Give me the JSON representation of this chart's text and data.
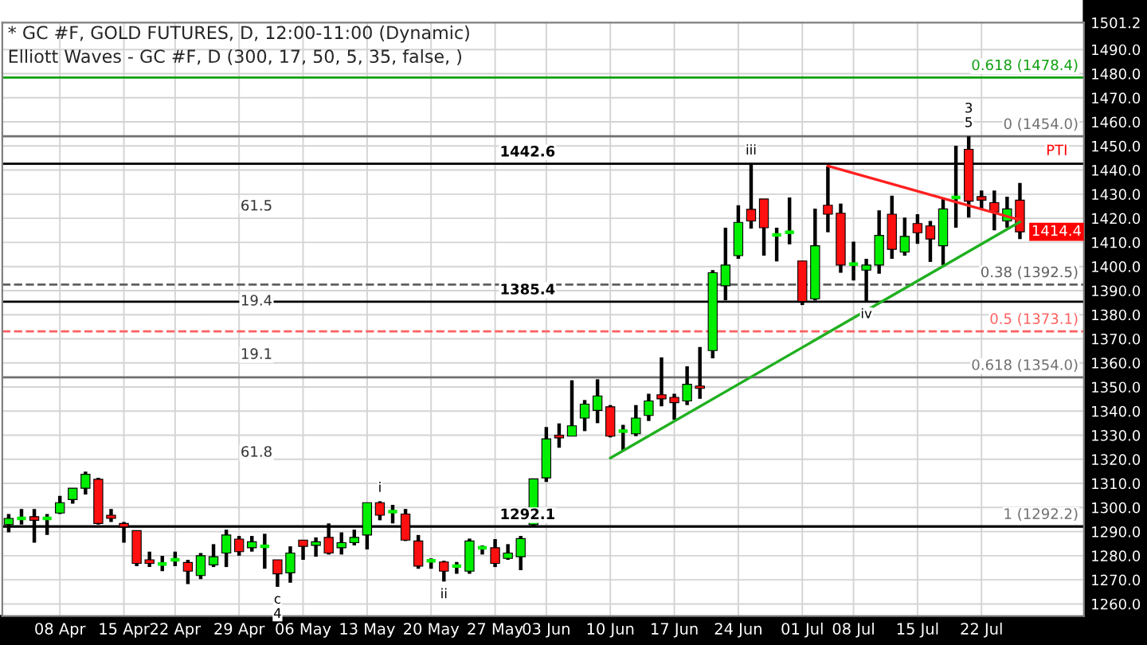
{
  "chart_data": {
    "type": "candlestick",
    "title": "* GC #F, GOLD FUTURES, D, 12:00-11:00 (Dynamic)",
    "subtitle": "Elliott Waves - GC #F, D (300, 17, 50, 5, 35, false, )",
    "categories": [
      null,
      null,
      null,
      null,
      "08 Apr",
      null,
      null,
      null,
      null,
      "15 Apr",
      null,
      null,
      null,
      "22 Apr",
      null,
      null,
      null,
      null,
      "29 Apr",
      null,
      null,
      null,
      null,
      "06 May",
      null,
      null,
      null,
      null,
      "13 May",
      null,
      null,
      null,
      null,
      "20 May",
      null,
      null,
      null,
      null,
      "27 May",
      null,
      null,
      null,
      "03 Jun",
      null,
      null,
      null,
      null,
      "10 Jun",
      null,
      null,
      null,
      null,
      "17 Jun",
      null,
      null,
      null,
      null,
      "24 Jun",
      null,
      null,
      null,
      null,
      "01 Jul",
      null,
      null,
      null,
      "08 Jul",
      null,
      null,
      null,
      null,
      "15 Jul",
      null,
      null,
      null,
      null,
      "22 Jul",
      null,
      null,
      null
    ],
    "ohlc": [
      [
        1292.9,
        1297.3,
        1289.7,
        1295.5
      ],
      [
        1295.5,
        1299.4,
        1292.9,
        1295.5
      ],
      [
        1296.2,
        1299.4,
        1285.4,
        1294.7
      ],
      [
        1295.5,
        1297.3,
        1288.6,
        1295.5
      ],
      [
        1297.7,
        1304.8,
        1297.3,
        1302.0
      ],
      [
        1303.3,
        1308.0,
        1301.6,
        1308.0
      ],
      [
        1308.0,
        1314.9,
        1305.4,
        1313.8
      ],
      [
        1311.7,
        1312.3,
        1292.9,
        1293.4
      ],
      [
        1296.8,
        1299.4,
        1294.0,
        1295.5
      ],
      [
        1293.4,
        1294.0,
        1285.4,
        1291.9
      ],
      [
        1290.4,
        1290.4,
        1275.7,
        1276.8
      ],
      [
        1278.3,
        1281.7,
        1275.3,
        1276.8
      ],
      [
        1276.6,
        1280.0,
        1273.6,
        1276.6
      ],
      [
        1278.3,
        1281.7,
        1275.7,
        1278.3
      ],
      [
        1277.2,
        1278.3,
        1268.2,
        1273.6
      ],
      [
        1271.8,
        1281.1,
        1270.3,
        1280.0
      ],
      [
        1276.2,
        1284.8,
        1275.3,
        1279.6
      ],
      [
        1281.1,
        1290.8,
        1275.3,
        1288.6
      ],
      [
        1286.9,
        1288.2,
        1280.0,
        1281.7
      ],
      [
        1283.3,
        1288.2,
        1281.7,
        1285.8
      ],
      [
        1283.9,
        1289.1,
        1274.6,
        1283.9
      ],
      [
        1278.3,
        1278.3,
        1267.1,
        1272.5
      ],
      [
        1272.9,
        1283.9,
        1268.8,
        1281.1
      ],
      [
        1286.5,
        1286.5,
        1278.3,
        1283.9
      ],
      [
        1284.3,
        1287.6,
        1279.6,
        1285.8
      ],
      [
        1287.6,
        1293.4,
        1280.5,
        1281.1
      ],
      [
        1283.3,
        1289.7,
        1280.5,
        1285.4
      ],
      [
        1285.4,
        1290.8,
        1284.3,
        1287.6
      ],
      [
        1288.6,
        1302.0,
        1282.6,
        1302.0
      ],
      [
        1302.0,
        1302.6,
        1294.7,
        1296.8
      ],
      [
        1298.3,
        1301.1,
        1293.4,
        1298.3
      ],
      [
        1297.3,
        1299.4,
        1286.1,
        1286.5
      ],
      [
        1286.1,
        1288.6,
        1274.6,
        1275.7
      ],
      [
        1277.9,
        1278.9,
        1274.6,
        1277.9
      ],
      [
        1277.4,
        1277.9,
        1269.3,
        1273.6
      ],
      [
        1275.7,
        1277.4,
        1272.5,
        1275.7
      ],
      [
        1273.6,
        1287.1,
        1272.5,
        1286.1
      ],
      [
        1283.3,
        1284.3,
        1280.5,
        1283.3
      ],
      [
        1283.3,
        1286.9,
        1275.3,
        1276.8
      ],
      [
        1278.9,
        1284.8,
        1278.3,
        1281.1
      ],
      [
        1279.6,
        1288.2,
        1274.0,
        1287.1
      ],
      [
        1292.9,
        1311.9,
        1292.5,
        1311.9
      ],
      [
        1312.3,
        1333.4,
        1310.6,
        1328.5
      ],
      [
        1330.0,
        1334.9,
        1324.8,
        1328.9
      ],
      [
        1329.6,
        1352.8,
        1329.6,
        1333.9
      ],
      [
        1337.1,
        1344.6,
        1331.7,
        1342.9
      ],
      [
        1340.3,
        1353.2,
        1335.0,
        1346.3
      ],
      [
        1341.8,
        1342.5,
        1329.1,
        1329.6
      ],
      [
        1331.7,
        1334.3,
        1323.5,
        1331.7
      ],
      [
        1330.6,
        1342.5,
        1329.6,
        1337.1
      ],
      [
        1338.2,
        1347.2,
        1335.9,
        1344.2
      ],
      [
        1346.8,
        1362.3,
        1342.0,
        1345.1
      ],
      [
        1345.7,
        1347.2,
        1336.4,
        1343.5
      ],
      [
        1344.2,
        1358.6,
        1342.5,
        1351.1
      ],
      [
        1350.4,
        1366.6,
        1345.1,
        1349.4
      ],
      [
        1365.1,
        1398.5,
        1361.9,
        1397.4
      ],
      [
        1392.0,
        1416.1,
        1386.0,
        1400.6
      ],
      [
        1404.5,
        1425.4,
        1403.2,
        1418.3
      ],
      [
        1423.7,
        1442.6,
        1415.7,
        1418.9
      ],
      [
        1428.0,
        1428.0,
        1404.5,
        1416.1
      ],
      [
        1413.1,
        1416.1,
        1402.1,
        1413.1
      ],
      [
        1414.2,
        1428.6,
        1409.2,
        1414.2
      ],
      [
        1402.3,
        1402.3,
        1384.0,
        1385.5
      ],
      [
        1386.6,
        1424.0,
        1385.9,
        1408.6
      ],
      [
        1425.4,
        1441.7,
        1414.2,
        1421.7
      ],
      [
        1422.1,
        1426.1,
        1397.4,
        1400.6
      ],
      [
        1401.0,
        1410.3,
        1394.2,
        1401.0
      ],
      [
        1398.5,
        1403.2,
        1385.5,
        1400.6
      ],
      [
        1400.6,
        1423.3,
        1397.0,
        1412.9
      ],
      [
        1421.7,
        1429.4,
        1403.2,
        1407.1
      ],
      [
        1406.0,
        1420.3,
        1404.5,
        1412.5
      ],
      [
        1417.8,
        1421.7,
        1409.4,
        1414.0
      ],
      [
        1416.8,
        1418.9,
        1401.9,
        1411.4
      ],
      [
        1408.6,
        1428.6,
        1400.6,
        1423.9
      ],
      [
        1428.6,
        1450.1,
        1416.1,
        1428.6
      ],
      [
        1448.6,
        1454.0,
        1420.3,
        1427.1
      ],
      [
        1429.0,
        1431.5,
        1424.0,
        1427.5
      ],
      [
        1426.5,
        1431.5,
        1415.0,
        1422.6
      ],
      [
        1418.9,
        1429.0,
        1416.1,
        1423.9
      ],
      [
        1427.5,
        1434.7,
        1411.4,
        1414.4
      ]
    ],
    "series": [
      {
        "type": "line",
        "color": "#ff2020",
        "values": [
          null,
          null,
          null,
          null,
          null,
          null,
          null,
          null,
          null,
          null,
          null,
          null,
          null,
          null,
          null,
          null,
          null,
          null,
          null,
          null,
          null,
          null,
          null,
          null,
          null,
          null,
          null,
          null,
          null,
          null,
          null,
          null,
          null,
          null,
          null,
          null,
          null,
          null,
          null,
          null,
          null,
          null,
          null,
          null,
          null,
          null,
          null,
          null,
          null,
          null,
          null,
          null,
          null,
          null,
          null,
          null,
          null,
          null,
          null,
          null,
          null,
          null,
          null,
          null,
          1441.7,
          null,
          null,
          null,
          null,
          null,
          null,
          null,
          null,
          null,
          null,
          null,
          null,
          null,
          null,
          1419.3
        ]
      },
      {
        "type": "line",
        "color": "#20b020",
        "values": [
          null,
          null,
          null,
          null,
          null,
          null,
          null,
          null,
          null,
          null,
          null,
          null,
          null,
          null,
          null,
          null,
          null,
          null,
          null,
          null,
          null,
          null,
          null,
          null,
          null,
          null,
          null,
          null,
          null,
          null,
          null,
          null,
          null,
          null,
          null,
          null,
          null,
          null,
          null,
          null,
          null,
          null,
          null,
          null,
          null,
          null,
          null,
          1320.5,
          null,
          null,
          null,
          null,
          null,
          null,
          null,
          null,
          null,
          null,
          null,
          null,
          null,
          null,
          null,
          null,
          null,
          null,
          null,
          null,
          null,
          null,
          null,
          null,
          null,
          null,
          null,
          null,
          null,
          null,
          null,
          1418.5
        ]
      }
    ],
    "ylim": [
      1255,
      1501.2
    ],
    "yticks": [
      {
        "value": 1260,
        "label": "1260.0"
      },
      {
        "value": 1270,
        "label": "1270.0"
      },
      {
        "value": 1280,
        "label": "1280.0"
      },
      {
        "value": 1290,
        "label": "1290.0"
      },
      {
        "value": 1300,
        "label": "1300.0"
      },
      {
        "value": 1310,
        "label": "1310.0"
      },
      {
        "value": 1320,
        "label": "1320.0"
      },
      {
        "value": 1330,
        "label": "1330.0"
      },
      {
        "value": 1340,
        "label": "1340.0"
      },
      {
        "value": 1350,
        "label": "1350.0"
      },
      {
        "value": 1360,
        "label": "1360.0"
      },
      {
        "value": 1370,
        "label": "1370.0"
      },
      {
        "value": 1380,
        "label": "1380.0"
      },
      {
        "value": 1390,
        "label": "1390.0"
      },
      {
        "value": 1400,
        "label": "1400.0"
      },
      {
        "value": 1410,
        "label": "1410.0"
      },
      {
        "value": 1420,
        "label": "1420.0"
      },
      {
        "value": 1430,
        "label": "1430.0"
      },
      {
        "value": 1440,
        "label": "1440.0"
      },
      {
        "value": 1450,
        "label": "1450.0"
      },
      {
        "value": 1460,
        "label": "1460.0"
      },
      {
        "value": 1470,
        "label": "1470.0"
      },
      {
        "value": 1480,
        "label": "1480.0"
      },
      {
        "value": 1490,
        "label": "1490.0"
      },
      {
        "value": 1501.2,
        "label": "1501.2"
      }
    ],
    "grid": true,
    "ref_lines": [
      {
        "axis": "y",
        "value": 1478.4,
        "label": "0.618 (1478.4)",
        "color": "#10a010",
        "line_style": "solid"
      },
      {
        "axis": "y",
        "value": 1454.0,
        "label": "0 (1454.0)",
        "color": "#707070",
        "line_style": "solid"
      },
      {
        "axis": "y",
        "value": 1442.6,
        "label": "1442.6",
        "color": "#000000",
        "line_style": "solid"
      },
      {
        "axis": "y",
        "value": 1392.5,
        "label": "0.38 (1392.5)",
        "color": "#606060",
        "line_style": "dashed"
      },
      {
        "axis": "y",
        "value": 1385.4,
        "label": "1385.4",
        "color": "#000000",
        "line_style": "solid"
      },
      {
        "axis": "y",
        "value": 1373.1,
        "label": "0.5 (1373.1)",
        "color": "#ff6060",
        "line_style": "dashed"
      },
      {
        "axis": "y",
        "value": 1354.0,
        "label": "0.618 (1354.0)",
        "color": "#707070",
        "line_style": "solid"
      },
      {
        "axis": "y",
        "value": 1292.2,
        "label": "1 (1292.2)",
        "color": "#707070",
        "line_style": "solid"
      },
      {
        "axis": "y",
        "value": 1292.1,
        "label": "1292.1",
        "color": "#000000",
        "line_style": "solid"
      }
    ],
    "annotations": [
      "61.5",
      "19.4",
      "19.1",
      "61.8",
      {
        "text": "i",
        "y": 1302.6
      },
      {
        "text": "ii",
        "y": 1269.3
      },
      {
        "text": "c",
        "y": 1267.1
      },
      {
        "text": "4",
        "y": 1267.1
      },
      {
        "text": "iii",
        "y": 1442.6
      },
      {
        "text": "iv",
        "y": 1385.5
      },
      {
        "text": "5",
        "y": 1454.0
      },
      {
        "text": "3",
        "y": 1454.0
      },
      {
        "text": "1414.4",
        "y": 1414.4
      },
      "PTI"
    ]
  }
}
